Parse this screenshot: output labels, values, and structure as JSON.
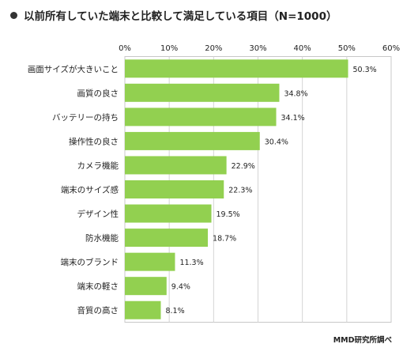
{
  "title": "以前所有していた端末と比較して満足している項目（N=1000）",
  "source": "MMD研究所調べ",
  "chart_data": {
    "type": "bar",
    "orientation": "horizontal",
    "title": "以前所有していた端末と比較して満足している項目（N=1000）",
    "categories": [
      "画面サイズが大きいこと",
      "画質の良さ",
      "バッテリーの持ち",
      "操作性の良さ",
      "カメラ機能",
      "端末のサイズ感",
      "デザイン性",
      "防水機能",
      "端末のブランド",
      "端末の軽さ",
      "音質の高さ"
    ],
    "values": [
      50.3,
      34.8,
      34.1,
      30.4,
      22.9,
      22.3,
      19.5,
      18.7,
      11.3,
      9.4,
      8.1
    ],
    "value_labels": [
      "50.3%",
      "34.8%",
      "34.1%",
      "30.4%",
      "22.9%",
      "22.3%",
      "19.5%",
      "18.7%",
      "11.3%",
      "9.4%",
      "8.1%"
    ],
    "ticks": [
      "0%",
      "10%",
      "20%",
      "30%",
      "40%",
      "50%",
      "60%"
    ],
    "xlim": [
      0,
      60
    ],
    "grid": true,
    "bar_color": "#92d050"
  }
}
